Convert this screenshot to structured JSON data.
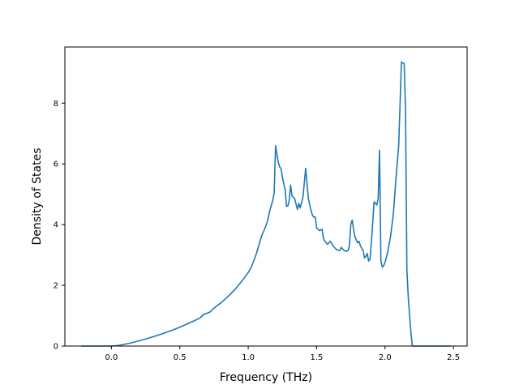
{
  "chart_data": {
    "type": "line",
    "title": "",
    "xlabel": "Frequency (THz)",
    "ylabel": "Density of States",
    "xlim": [
      -0.34,
      2.6
    ],
    "ylim": [
      0,
      9.85
    ],
    "xticks": [
      0.0,
      0.5,
      1.0,
      1.5,
      2.0,
      2.5
    ],
    "xtick_labels": [
      "0.0",
      "0.5",
      "1.0",
      "1.5",
      "2.0",
      "2.5"
    ],
    "yticks": [
      0,
      2,
      4,
      6,
      8
    ],
    "ytick_labels": [
      "0",
      "2",
      "4",
      "6",
      "8"
    ],
    "grid": false,
    "legend": "none",
    "colors": {
      "line": "#1f77b4",
      "axes": "#000000",
      "background": "#ffffff"
    },
    "series": [
      {
        "x": [
          -0.22,
          0.0,
          0.05,
          0.1,
          0.15,
          0.2,
          0.25,
          0.3,
          0.35,
          0.4,
          0.45,
          0.5,
          0.55,
          0.6,
          0.65,
          0.67,
          0.7,
          0.72,
          0.75,
          0.8,
          0.85,
          0.9,
          0.95,
          0.98,
          1.0,
          1.02,
          1.04,
          1.06,
          1.08,
          1.1,
          1.11,
          1.12,
          1.14,
          1.15,
          1.16,
          1.18,
          1.19,
          1.2,
          1.22,
          1.23,
          1.24,
          1.25,
          1.27,
          1.28,
          1.29,
          1.3,
          1.31,
          1.32,
          1.34,
          1.36,
          1.37,
          1.38,
          1.4,
          1.42,
          1.44,
          1.46,
          1.47,
          1.48,
          1.49,
          1.5,
          1.52,
          1.54,
          1.55,
          1.56,
          1.58,
          1.6,
          1.62,
          1.64,
          1.66,
          1.67,
          1.68,
          1.7,
          1.72,
          1.73,
          1.74,
          1.75,
          1.76,
          1.77,
          1.78,
          1.8,
          1.81,
          1.82,
          1.84,
          1.85,
          1.86,
          1.87,
          1.88,
          1.89,
          1.9,
          1.91,
          1.92,
          1.93,
          1.94,
          1.95,
          1.96,
          1.97,
          1.98,
          1.99,
          2.0,
          2.02,
          2.04,
          2.06,
          2.08,
          2.1,
          2.12,
          2.14,
          2.15,
          2.16,
          2.17,
          2.18,
          2.19,
          2.2,
          2.22,
          2.24,
          2.25,
          2.3,
          2.48
        ],
        "y": [
          0.0,
          0.0,
          0.02,
          0.06,
          0.11,
          0.17,
          0.23,
          0.3,
          0.37,
          0.45,
          0.53,
          0.62,
          0.72,
          0.82,
          0.93,
          1.03,
          1.08,
          1.12,
          1.25,
          1.42,
          1.62,
          1.85,
          2.12,
          2.3,
          2.42,
          2.57,
          2.8,
          3.05,
          3.35,
          3.65,
          3.75,
          3.85,
          4.1,
          4.3,
          4.5,
          4.8,
          5.05,
          6.6,
          6.05,
          5.9,
          5.85,
          5.55,
          5.15,
          4.6,
          4.62,
          4.8,
          5.3,
          4.95,
          4.85,
          4.5,
          4.7,
          4.55,
          4.9,
          5.85,
          4.85,
          4.45,
          4.3,
          4.25,
          4.25,
          3.9,
          3.8,
          3.85,
          3.55,
          3.45,
          3.35,
          3.45,
          3.3,
          3.2,
          3.15,
          3.15,
          3.25,
          3.15,
          3.12,
          3.15,
          3.3,
          4.0,
          4.15,
          3.85,
          3.6,
          3.4,
          3.45,
          3.3,
          3.15,
          2.9,
          2.95,
          3.05,
          2.8,
          2.85,
          3.4,
          4.05,
          4.75,
          4.7,
          4.65,
          4.85,
          6.45,
          2.8,
          2.6,
          2.65,
          2.75,
          3.1,
          3.6,
          4.3,
          5.5,
          6.6,
          9.35,
          9.3,
          7.8,
          2.5,
          1.6,
          1.0,
          0.4,
          0.0,
          0.0,
          0.0,
          0.0,
          0.0,
          0.0
        ]
      }
    ]
  }
}
